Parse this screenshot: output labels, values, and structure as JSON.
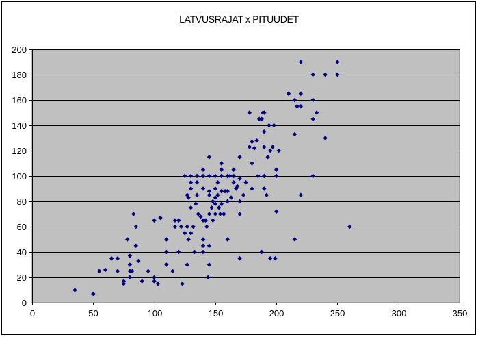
{
  "chart_data": {
    "type": "scatter",
    "title": "LATVUSRAJAT x PITUUDET",
    "xlabel": "",
    "ylabel": "",
    "xlim": [
      0,
      350
    ],
    "ylim": [
      0,
      200
    ],
    "x_ticks": [
      0,
      50,
      100,
      150,
      200,
      250,
      300,
      350
    ],
    "y_ticks": [
      0,
      20,
      40,
      60,
      80,
      100,
      120,
      140,
      160,
      180,
      200
    ],
    "grid": "horizontal",
    "legend": "none",
    "colors": {
      "plot_background": "#c0c0c0",
      "marker": "#000080",
      "gridline": "#000000"
    },
    "points": [
      [
        35,
        10
      ],
      [
        50,
        7
      ],
      [
        55,
        25
      ],
      [
        60,
        26
      ],
      [
        65,
        35
      ],
      [
        70,
        25
      ],
      [
        70,
        35
      ],
      [
        75,
        15
      ],
      [
        75,
        17
      ],
      [
        78,
        50
      ],
      [
        80,
        20
      ],
      [
        80,
        25
      ],
      [
        80,
        30
      ],
      [
        80,
        37
      ],
      [
        82,
        25
      ],
      [
        83,
        70
      ],
      [
        85,
        45
      ],
      [
        85,
        60
      ],
      [
        87,
        33
      ],
      [
        90,
        17
      ],
      [
        95,
        25
      ],
      [
        100,
        20
      ],
      [
        100,
        17
      ],
      [
        100,
        65
      ],
      [
        103,
        15
      ],
      [
        105,
        67
      ],
      [
        110,
        30
      ],
      [
        110,
        40
      ],
      [
        110,
        50
      ],
      [
        115,
        25
      ],
      [
        117,
        60
      ],
      [
        117,
        65
      ],
      [
        120,
        40
      ],
      [
        120,
        65
      ],
      [
        122,
        60
      ],
      [
        123,
        15
      ],
      [
        125,
        55
      ],
      [
        125,
        100
      ],
      [
        127,
        30
      ],
      [
        127,
        60
      ],
      [
        127,
        85
      ],
      [
        128,
        50
      ],
      [
        128,
        83
      ],
      [
        130,
        55
      ],
      [
        130,
        75
      ],
      [
        130,
        90
      ],
      [
        130,
        95
      ],
      [
        130,
        100
      ],
      [
        132,
        60
      ],
      [
        133,
        40
      ],
      [
        134,
        78
      ],
      [
        135,
        85
      ],
      [
        135,
        95
      ],
      [
        135,
        100
      ],
      [
        136,
        70
      ],
      [
        138,
        68
      ],
      [
        140,
        40
      ],
      [
        140,
        45
      ],
      [
        140,
        50
      ],
      [
        140,
        65
      ],
      [
        140,
        90
      ],
      [
        140,
        100
      ],
      [
        140,
        105
      ],
      [
        142,
        65
      ],
      [
        143,
        60
      ],
      [
        144,
        20
      ],
      [
        145,
        30
      ],
      [
        145,
        45
      ],
      [
        145,
        70
      ],
      [
        145,
        85
      ],
      [
        145,
        88
      ],
      [
        145,
        100
      ],
      [
        145,
        115
      ],
      [
        147,
        75
      ],
      [
        148,
        65
      ],
      [
        148,
        80
      ],
      [
        150,
        70
      ],
      [
        150,
        78
      ],
      [
        150,
        83
      ],
      [
        150,
        90
      ],
      [
        150,
        100
      ],
      [
        152,
        85
      ],
      [
        152,
        95
      ],
      [
        153,
        75
      ],
      [
        154,
        70
      ],
      [
        155,
        78
      ],
      [
        155,
        88
      ],
      [
        155,
        100
      ],
      [
        155,
        105
      ],
      [
        155,
        110
      ],
      [
        157,
        70
      ],
      [
        158,
        88
      ],
      [
        160,
        50
      ],
      [
        160,
        80
      ],
      [
        160,
        88
      ],
      [
        160,
        100
      ],
      [
        162,
        100
      ],
      [
        163,
        83
      ],
      [
        165,
        95
      ],
      [
        165,
        100
      ],
      [
        165,
        105
      ],
      [
        167,
        90
      ],
      [
        168,
        92
      ],
      [
        170,
        35
      ],
      [
        170,
        70
      ],
      [
        170,
        80
      ],
      [
        170,
        98
      ],
      [
        170,
        115
      ],
      [
        173,
        85
      ],
      [
        175,
        95
      ],
      [
        178,
        123
      ],
      [
        178,
        150
      ],
      [
        180,
        90
      ],
      [
        180,
        110
      ],
      [
        180,
        127
      ],
      [
        182,
        122
      ],
      [
        184,
        128
      ],
      [
        185,
        100
      ],
      [
        186,
        145
      ],
      [
        188,
        40
      ],
      [
        188,
        145
      ],
      [
        189,
        150
      ],
      [
        190,
        90
      ],
      [
        190,
        100
      ],
      [
        190,
        123
      ],
      [
        190,
        123
      ],
      [
        190,
        135
      ],
      [
        190,
        150
      ],
      [
        192,
        85
      ],
      [
        193,
        115
      ],
      [
        194,
        140
      ],
      [
        195,
        35
      ],
      [
        195,
        120
      ],
      [
        197,
        123
      ],
      [
        198,
        140
      ],
      [
        199,
        35
      ],
      [
        200,
        72
      ],
      [
        200,
        100
      ],
      [
        200,
        105
      ],
      [
        202,
        120
      ],
      [
        210,
        165
      ],
      [
        215,
        50
      ],
      [
        215,
        133
      ],
      [
        215,
        160
      ],
      [
        217,
        155
      ],
      [
        220,
        85
      ],
      [
        220,
        155
      ],
      [
        220,
        165
      ],
      [
        220,
        190
      ],
      [
        230,
        100
      ],
      [
        230,
        145
      ],
      [
        230,
        160
      ],
      [
        230,
        180
      ],
      [
        233,
        150
      ],
      [
        240,
        130
      ],
      [
        240,
        180
      ],
      [
        250,
        180
      ],
      [
        250,
        190
      ],
      [
        260,
        60
      ]
    ]
  }
}
